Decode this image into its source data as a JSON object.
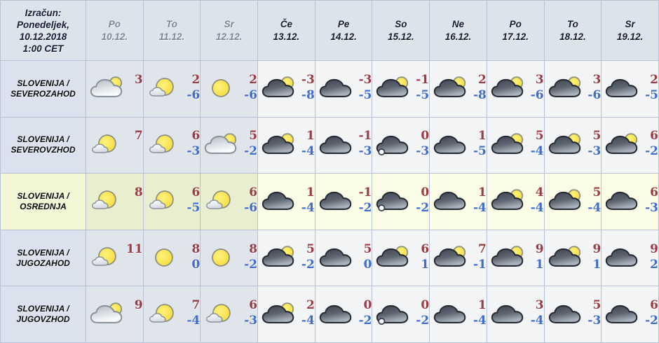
{
  "table": {
    "corner": {
      "lines": [
        "Izračun:",
        "Ponedeljek,",
        "10.12.2018",
        "1:00 CET"
      ]
    },
    "columns": [
      {
        "day": "Po",
        "date": "10.12.",
        "muted": true
      },
      {
        "day": "To",
        "date": "11.12.",
        "muted": true
      },
      {
        "day": "Sr",
        "date": "12.12.",
        "muted": true
      },
      {
        "day": "Če",
        "date": "13.12.",
        "muted": false
      },
      {
        "day": "Pe",
        "date": "14.12.",
        "muted": false
      },
      {
        "day": "So",
        "date": "15.12.",
        "muted": false
      },
      {
        "day": "Ne",
        "date": "16.12.",
        "muted": false
      },
      {
        "day": "Po",
        "date": "17.12.",
        "muted": false
      },
      {
        "day": "To",
        "date": "18.12.",
        "muted": false
      },
      {
        "day": "Sr",
        "date": "19.12.",
        "muted": false
      }
    ],
    "rows": [
      {
        "region_line1": "SLOVENIJA /",
        "region_line2": "SEVEROZAHOD",
        "highlight": false,
        "cells": [
          {
            "icon": "cloud-sun-light",
            "hi": "3",
            "lo": ""
          },
          {
            "icon": "sun-small-cloud",
            "hi": "2",
            "lo": "-6"
          },
          {
            "icon": "sun",
            "hi": "2",
            "lo": "-6"
          },
          {
            "icon": "dark-cloud-sun",
            "hi": "-3",
            "lo": "-8"
          },
          {
            "icon": "dark-cloud",
            "hi": "-3",
            "lo": "-5"
          },
          {
            "icon": "dark-cloud-sun",
            "hi": "-1",
            "lo": "-5"
          },
          {
            "icon": "dark-cloud-sun",
            "hi": "2",
            "lo": "-8"
          },
          {
            "icon": "dark-cloud-sun",
            "hi": "3",
            "lo": "-6"
          },
          {
            "icon": "dark-cloud-sun",
            "hi": "3",
            "lo": "-6"
          },
          {
            "icon": "dark-cloud",
            "hi": "2",
            "lo": "-5"
          }
        ]
      },
      {
        "region_line1": "SLOVENIJA /",
        "region_line2": "SEVEROVZHOD",
        "highlight": false,
        "cells": [
          {
            "icon": "sun-small-cloud",
            "hi": "7",
            "lo": ""
          },
          {
            "icon": "sun-small-cloud",
            "hi": "6",
            "lo": "-3"
          },
          {
            "icon": "cloud-sun-light",
            "hi": "5",
            "lo": "-2"
          },
          {
            "icon": "dark-cloud-sun",
            "hi": "1",
            "lo": "-4"
          },
          {
            "icon": "dark-cloud",
            "hi": "-1",
            "lo": "-3"
          },
          {
            "icon": "dark-cloud-snow",
            "hi": "0",
            "lo": "-3"
          },
          {
            "icon": "dark-cloud",
            "hi": "1",
            "lo": "-5"
          },
          {
            "icon": "dark-cloud-sun",
            "hi": "5",
            "lo": "-4"
          },
          {
            "icon": "dark-cloud-sun",
            "hi": "5",
            "lo": "-3"
          },
          {
            "icon": "dark-cloud-sun",
            "hi": "6",
            "lo": "-2"
          }
        ]
      },
      {
        "region_line1": "SLOVENIJA /",
        "region_line2": "OSREDNJA",
        "highlight": true,
        "cells": [
          {
            "icon": "sun-small-cloud",
            "hi": "8",
            "lo": ""
          },
          {
            "icon": "sun-small-cloud",
            "hi": "6",
            "lo": "-5"
          },
          {
            "icon": "sun-small-cloud",
            "hi": "6",
            "lo": "-6"
          },
          {
            "icon": "dark-cloud",
            "hi": "1",
            "lo": "-4"
          },
          {
            "icon": "dark-cloud",
            "hi": "-1",
            "lo": "-2"
          },
          {
            "icon": "dark-cloud-snow",
            "hi": "0",
            "lo": "-2"
          },
          {
            "icon": "dark-cloud",
            "hi": "1",
            "lo": "-4"
          },
          {
            "icon": "dark-cloud-sun",
            "hi": "4",
            "lo": "-4"
          },
          {
            "icon": "dark-cloud-sun",
            "hi": "5",
            "lo": "-4"
          },
          {
            "icon": "dark-cloud",
            "hi": "6",
            "lo": "-3"
          }
        ]
      },
      {
        "region_line1": "SLOVENIJA /",
        "region_line2": "JUGOZAHOD",
        "highlight": false,
        "cells": [
          {
            "icon": "sun-small-cloud",
            "hi": "11",
            "lo": ""
          },
          {
            "icon": "sun",
            "hi": "8",
            "lo": "0"
          },
          {
            "icon": "sun",
            "hi": "8",
            "lo": "-2"
          },
          {
            "icon": "dark-cloud-sun",
            "hi": "5",
            "lo": "-2"
          },
          {
            "icon": "dark-cloud",
            "hi": "5",
            "lo": "0"
          },
          {
            "icon": "dark-cloud-sun",
            "hi": "6",
            "lo": "1"
          },
          {
            "icon": "dark-cloud-sun",
            "hi": "7",
            "lo": "-1"
          },
          {
            "icon": "dark-cloud-sun",
            "hi": "9",
            "lo": "1"
          },
          {
            "icon": "dark-cloud-sun",
            "hi": "9",
            "lo": "1"
          },
          {
            "icon": "dark-cloud",
            "hi": "9",
            "lo": "2"
          }
        ]
      },
      {
        "region_line1": "SLOVENIJA /",
        "region_line2": "JUGOVZHOD",
        "highlight": false,
        "cells": [
          {
            "icon": "cloud-sun-light",
            "hi": "9",
            "lo": ""
          },
          {
            "icon": "sun-small-cloud",
            "hi": "7",
            "lo": "-4"
          },
          {
            "icon": "sun-small-cloud",
            "hi": "6",
            "lo": "-3"
          },
          {
            "icon": "dark-cloud-sun",
            "hi": "2",
            "lo": "-4"
          },
          {
            "icon": "dark-cloud",
            "hi": "0",
            "lo": "-2"
          },
          {
            "icon": "dark-cloud-snow",
            "hi": "0",
            "lo": "-2"
          },
          {
            "icon": "dark-cloud",
            "hi": "1",
            "lo": "-4"
          },
          {
            "icon": "dark-cloud",
            "hi": "3",
            "lo": "-4"
          },
          {
            "icon": "dark-cloud",
            "hi": "5",
            "lo": "-3"
          },
          {
            "icon": "dark-cloud",
            "hi": "6",
            "lo": "-2"
          }
        ]
      }
    ]
  },
  "colors": {
    "high_temp": "#9d3b45",
    "low_temp": "#3e6cd2",
    "grid_border": "#b6c1d4",
    "header_bg": "#dce3eb",
    "label_bg": "#dbe2ee",
    "muted_col_bg": "#e0e5ec",
    "plain_col_bg": "#f3f4f6",
    "highlight_row_bg": "#fbfde6",
    "muted_header_text": "#7e8795",
    "header_text": "#151b2e"
  },
  "icon_legend": {
    "sun": "sunny",
    "sun-small-cloud": "mostly sunny",
    "cloud-sun-light": "partly cloudy (light cloud with sun)",
    "dark-cloud": "overcast",
    "dark-cloud-sun": "mostly cloudy with sun",
    "dark-cloud-snow": "overcast with precipitation dot"
  }
}
